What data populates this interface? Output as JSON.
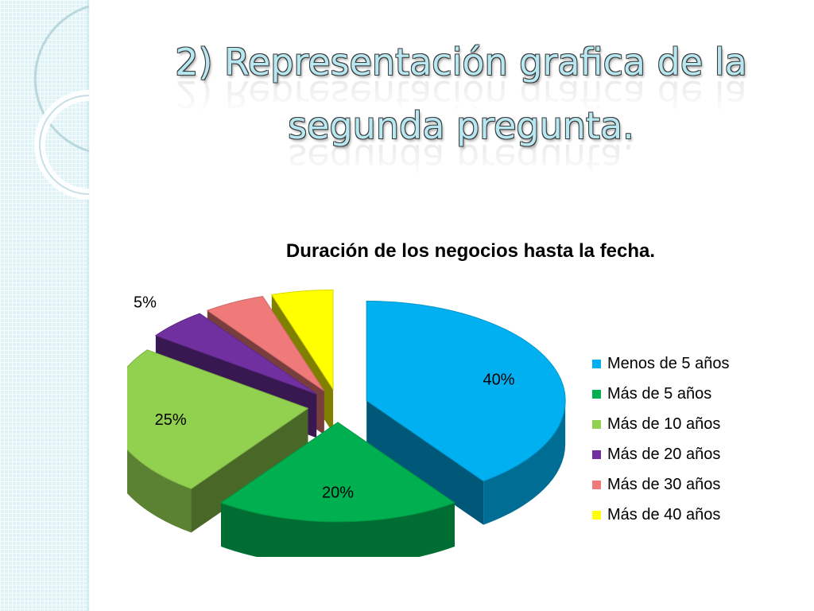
{
  "slide": {
    "title_line1": "2) Representación grafica de la",
    "title_line2": "segunda pregunta."
  },
  "chart_data": {
    "type": "pie",
    "title": "Duración de los negocios hasta la fecha.",
    "categories": [
      "Menos de 5 años",
      "Más de 5 años",
      "Más de 10 años",
      "Más de 20 años",
      "Más de 30 años",
      "Más de 40 años"
    ],
    "values": [
      40,
      20,
      25,
      5,
      5,
      5
    ],
    "labels": [
      "40%",
      "20%",
      "25%",
      "5%",
      "5%",
      "5%"
    ],
    "colors": [
      "#00b0f0",
      "#00b050",
      "#92d050",
      "#7030a0",
      "#f07a7a",
      "#ffff00"
    ],
    "legend_position": "right",
    "style": "3d-exploded"
  }
}
